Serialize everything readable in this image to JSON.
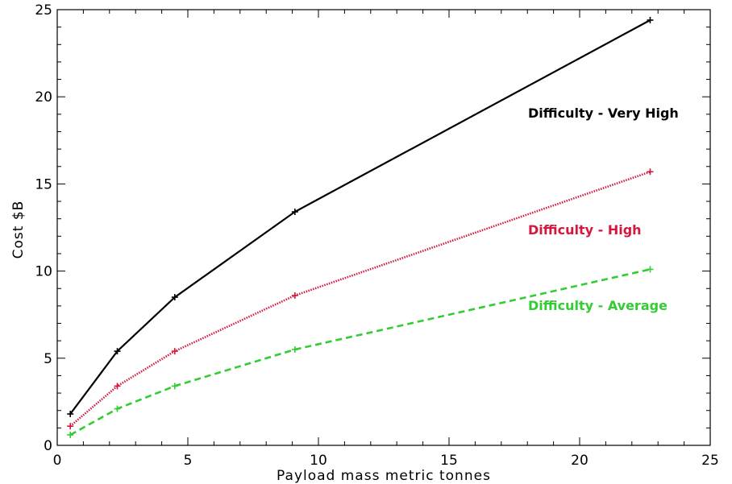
{
  "chart_data": {
    "type": "line",
    "title": "",
    "xlabel": "Payload mass metric tonnes",
    "ylabel": "Cost $B",
    "xlim": [
      0,
      25
    ],
    "ylim": [
      0,
      25
    ],
    "xticks": [
      0,
      5,
      10,
      15,
      20,
      25
    ],
    "yticks": [
      0,
      5,
      10,
      15,
      20,
      25
    ],
    "xtick_labels": [
      "0",
      "5",
      "10",
      "15",
      "20",
      "25"
    ],
    "ytick_labels": [
      "0",
      "5",
      "10",
      "15",
      "20",
      "25"
    ],
    "grid": false,
    "legend": "inline labels at right",
    "series": [
      {
        "name": "Difficulty - Very High",
        "color": "#000000",
        "line_style": "solid",
        "marker": "plus",
        "x": [
          0.5,
          2.3,
          4.5,
          9.1,
          22.7
        ],
        "y": [
          1.8,
          5.4,
          8.5,
          13.4,
          24.4
        ]
      },
      {
        "name": "Difficulty - High",
        "color": "#d4183d",
        "line_style": "dotted",
        "marker": "plus",
        "x": [
          0.5,
          2.3,
          4.5,
          9.1,
          22.7
        ],
        "y": [
          1.1,
          3.4,
          5.4,
          8.6,
          15.7
        ]
      },
      {
        "name": "Difficulty - Average",
        "color": "#33cc33",
        "line_style": "dashed",
        "marker": "plus",
        "x": [
          0.5,
          2.3,
          4.5,
          9.1,
          22.7
        ],
        "y": [
          0.6,
          2.1,
          3.4,
          5.5,
          10.1
        ]
      }
    ]
  }
}
